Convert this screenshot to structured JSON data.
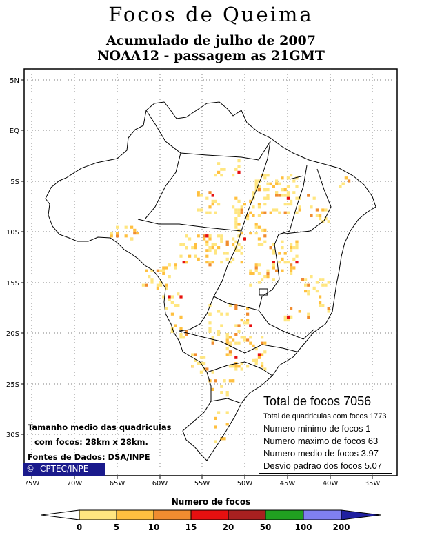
{
  "title": "Focos de Queima",
  "subtitle1": "Acumulado de julho de 2007",
  "subtitle2": "NOAA12 - passagem as 21GMT",
  "lat_labels": [
    "5N",
    "EQ",
    "5S",
    "10S",
    "15S",
    "20S",
    "25S",
    "30S"
  ],
  "lon_labels": [
    "75W",
    "70W",
    "65W",
    "60W",
    "55W",
    "50W",
    "45W",
    "40W",
    "35W"
  ],
  "stats": {
    "total": "Total de focos 7056",
    "quadriculas": "Total de quadriculas com focos 1773",
    "minimo": "Numero minimo de focos 1",
    "maximo": "Numero maximo de focos 63",
    "medio": "Numero medio de focos 3.97",
    "desvio": "Desvio padrao dos focos 5.07"
  },
  "notes": {
    "line1": "Tamanho medio das quadriculas",
    "line2": "com focos: 28km x 28km.",
    "line3": "Fontes de Dados: DSA/INPE"
  },
  "credit": {
    "icon": "©",
    "text": "CPTEC/INPE"
  },
  "legend": {
    "title": "Numero de focos",
    "ticks": [
      "0",
      "5",
      "10",
      "15",
      "20",
      "50",
      "100",
      "200"
    ],
    "colors": [
      "#ffffff",
      "#ffe680",
      "#ffc040",
      "#f08c30",
      "#e61010",
      "#a82020",
      "#20a020",
      "#8080f0",
      "#2020a0"
    ]
  }
}
